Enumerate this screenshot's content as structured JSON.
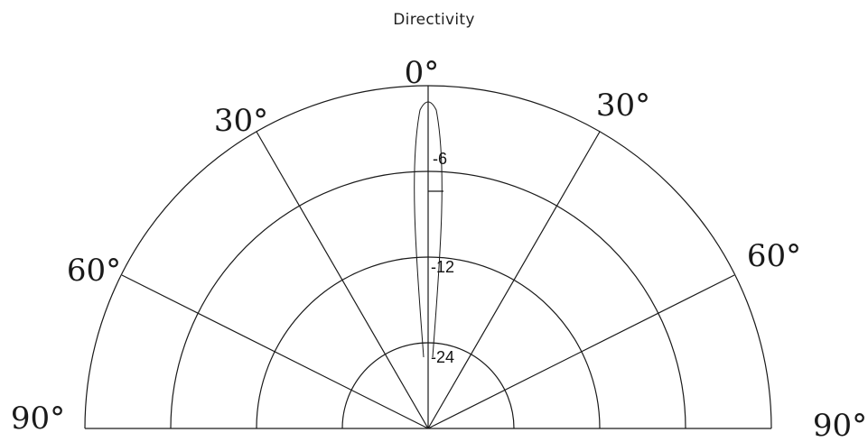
{
  "title": "Directivity",
  "angle_labels": {
    "top": "0°",
    "left_30": "30°",
    "right_30": "30°",
    "left_60": "60°",
    "right_60": "60°",
    "left_90": "90°",
    "right_90": "90°"
  },
  "ring_labels": {
    "r1": "-6",
    "r2": "-12",
    "r3": "-24"
  },
  "colors": {
    "line": "#1a1a1a",
    "background": "#ffffff"
  }
}
